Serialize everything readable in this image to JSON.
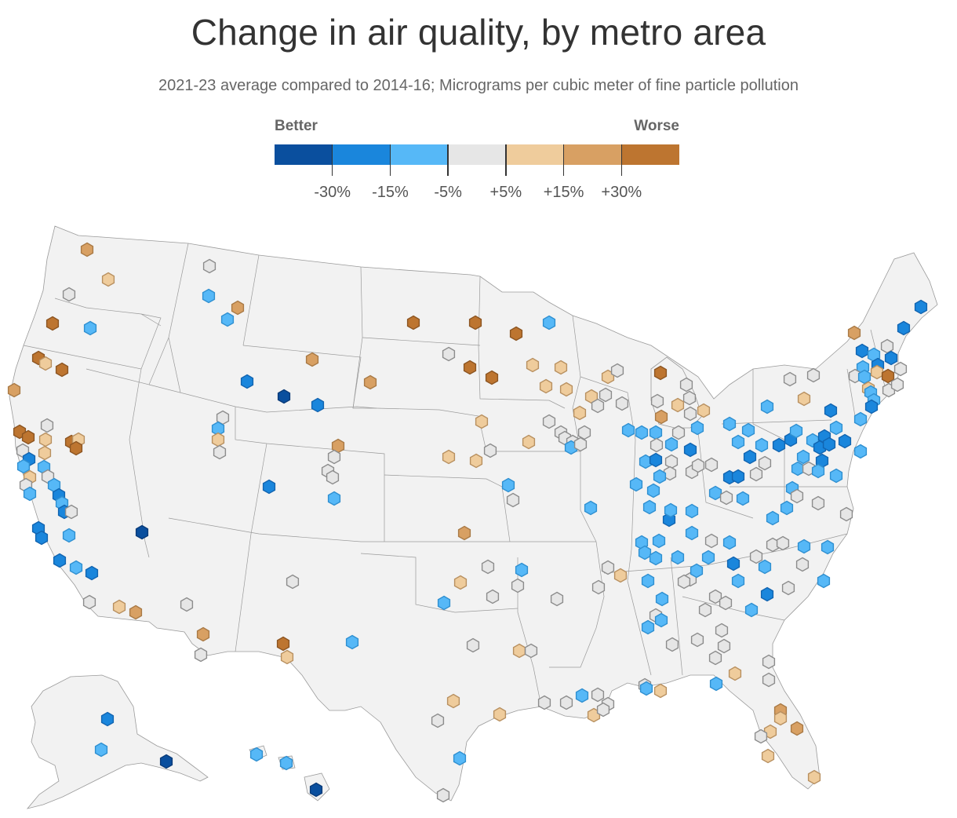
{
  "title": "Change in air quality, by metro area",
  "subtitle": "2021-23 average compared to 2014-16; Micrograms per cubic meter of fine particle pollution",
  "legend": {
    "better_label": "Better",
    "worse_label": "Worse",
    "colors": [
      "#0a4f9e",
      "#1a86dc",
      "#56b8f7",
      "#e6e6e6",
      "#efcc9c",
      "#d8a063",
      "#bd7530"
    ],
    "ticks": [
      "-30%",
      "-15%",
      "-5%",
      "+5%",
      "+15%",
      "+30%"
    ]
  },
  "map": {
    "land_color": "#f2f2f2",
    "border_color": "#9a9a9a",
    "marker_stroke": {
      "0": "#0a3b78",
      "1": "#1264b0",
      "2": "#2f8fd0",
      "3": "#8c8c8c",
      "4": "#b89060",
      "5": "#a97a46",
      "6": "#8c5522"
    }
  }
}
